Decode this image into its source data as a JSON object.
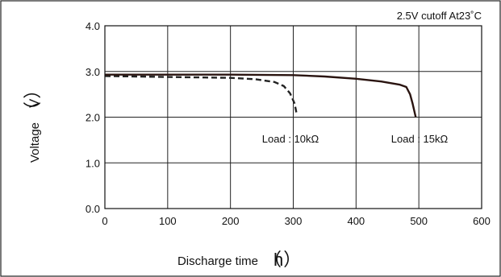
{
  "chart_data": {
    "type": "line",
    "xlabel": "Discharge time",
    "xunit": "h",
    "ylabel": "Voltage",
    "yunit": "V",
    "xlim": [
      0,
      600
    ],
    "ylim": [
      0.0,
      4.0
    ],
    "x_ticks": [
      "0",
      "100",
      "200",
      "300",
      "400",
      "500",
      "600"
    ],
    "y_ticks": [
      "0.0",
      "1.0",
      "2.0",
      "3.0",
      "4.0"
    ],
    "grid": true,
    "condition_note": "2.5V cutoff At23˚C",
    "series": [
      {
        "name": "Load : 10kΩ",
        "style": "dashed",
        "color": "#222222",
        "points": [
          [
            0,
            2.9
          ],
          [
            50,
            2.89
          ],
          [
            100,
            2.88
          ],
          [
            150,
            2.87
          ],
          [
            200,
            2.86
          ],
          [
            240,
            2.83
          ],
          [
            270,
            2.77
          ],
          [
            285,
            2.68
          ],
          [
            295,
            2.52
          ],
          [
            302,
            2.3
          ],
          [
            305,
            2.1
          ]
        ]
      },
      {
        "name": "Load : 15kΩ",
        "style": "solid",
        "color": "#2a1410",
        "points": [
          [
            0,
            2.93
          ],
          [
            100,
            2.93
          ],
          [
            200,
            2.93
          ],
          [
            300,
            2.92
          ],
          [
            350,
            2.89
          ],
          [
            400,
            2.84
          ],
          [
            440,
            2.78
          ],
          [
            470,
            2.71
          ],
          [
            480,
            2.66
          ],
          [
            486,
            2.5
          ],
          [
            490,
            2.3
          ],
          [
            495,
            2.0
          ]
        ]
      }
    ]
  }
}
